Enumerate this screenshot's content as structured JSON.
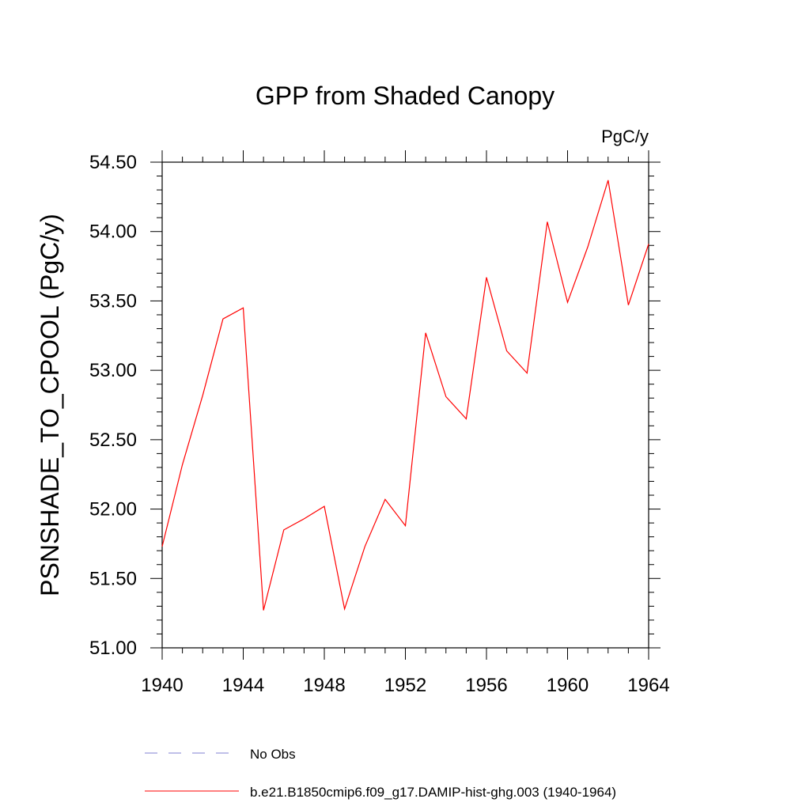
{
  "chart_data": {
    "type": "line",
    "title": "GPP from Shaded Canopy",
    "units_label": "PgC/y",
    "ylabel": "PSNSHADE_TO_CPOOL  (PgC/y)",
    "xlabel": "",
    "xlim": [
      1940,
      1964
    ],
    "ylim": [
      51.0,
      54.5
    ],
    "x_ticks": [
      1940,
      1944,
      1948,
      1952,
      1956,
      1960,
      1964
    ],
    "x_tick_labels": [
      "1940",
      "1944",
      "1948",
      "1952",
      "1956",
      "1960",
      "1964"
    ],
    "y_ticks": [
      51.0,
      51.5,
      52.0,
      52.5,
      53.0,
      53.5,
      54.0,
      54.5
    ],
    "y_tick_labels": [
      "51.00",
      "51.50",
      "52.00",
      "52.50",
      "53.00",
      "53.50",
      "54.00",
      "54.50"
    ],
    "grid": false,
    "legend_position": "bottom",
    "series": [
      {
        "name": "b.e21.B1850cmip6.f09_g17.DAMIP-hist-ghg.003 (1940-1964)",
        "color": "#ff0000",
        "line_style": "solid",
        "x": [
          1940,
          1941,
          1942,
          1943,
          1944,
          1945,
          1946,
          1947,
          1948,
          1949,
          1950,
          1951,
          1952,
          1953,
          1954,
          1955,
          1956,
          1957,
          1958,
          1959,
          1960,
          1961,
          1962,
          1963,
          1964
        ],
        "y": [
          51.73,
          52.32,
          52.82,
          53.37,
          53.45,
          51.27,
          51.85,
          51.93,
          52.02,
          51.28,
          51.73,
          52.07,
          51.88,
          53.27,
          52.81,
          52.65,
          53.67,
          53.14,
          52.98,
          54.07,
          53.49,
          53.89,
          54.37,
          53.47,
          53.91
        ]
      }
    ],
    "legend": [
      {
        "label": "No Obs",
        "color": "#8080d0",
        "line_style": "dashed"
      },
      {
        "label": "b.e21.B1850cmip6.f09_g17.DAMIP-hist-ghg.003 (1940-1964)",
        "color": "#ff0000",
        "line_style": "solid"
      }
    ]
  }
}
